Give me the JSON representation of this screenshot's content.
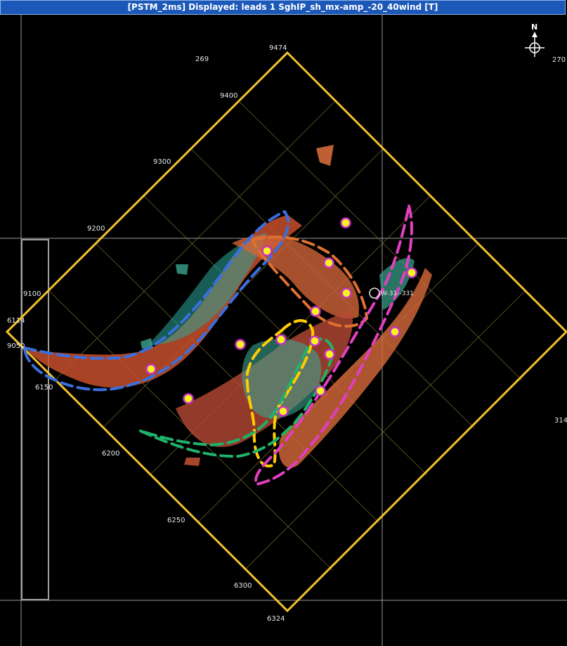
{
  "window": {
    "title": "[PSTM_2ms] Displayed: leads  1  SghIP_sh_mx-amp_-20_40wind   [T]"
  },
  "compass": {
    "label": "N"
  },
  "colors": {
    "survey_outline": "#f2c12e",
    "well_marker_fill": "#f5f51e",
    "well_marker_ring": "#c832c8",
    "lead_blue": "#3a6fe0",
    "lead_orange": "#e07030",
    "lead_yellow": "#ffcc00",
    "lead_green": "#1db36b",
    "lead_magenta": "#e040c0"
  },
  "labels": {
    "corner_top": "9474",
    "corner_bottom": "6324",
    "xline_9400": "9400",
    "xline_9300": "9300",
    "xline_9200": "9200",
    "xline_9100": "9100",
    "xline_9050": "9050",
    "xline_6114": "6114",
    "inline_6150": "6150",
    "inline_6200": "6200",
    "inline_6250": "6250",
    "inline_6300": "6300",
    "grid_269": "269",
    "grid_270": "270",
    "grid_314": "314",
    "well_name": "W-31--331"
  }
}
